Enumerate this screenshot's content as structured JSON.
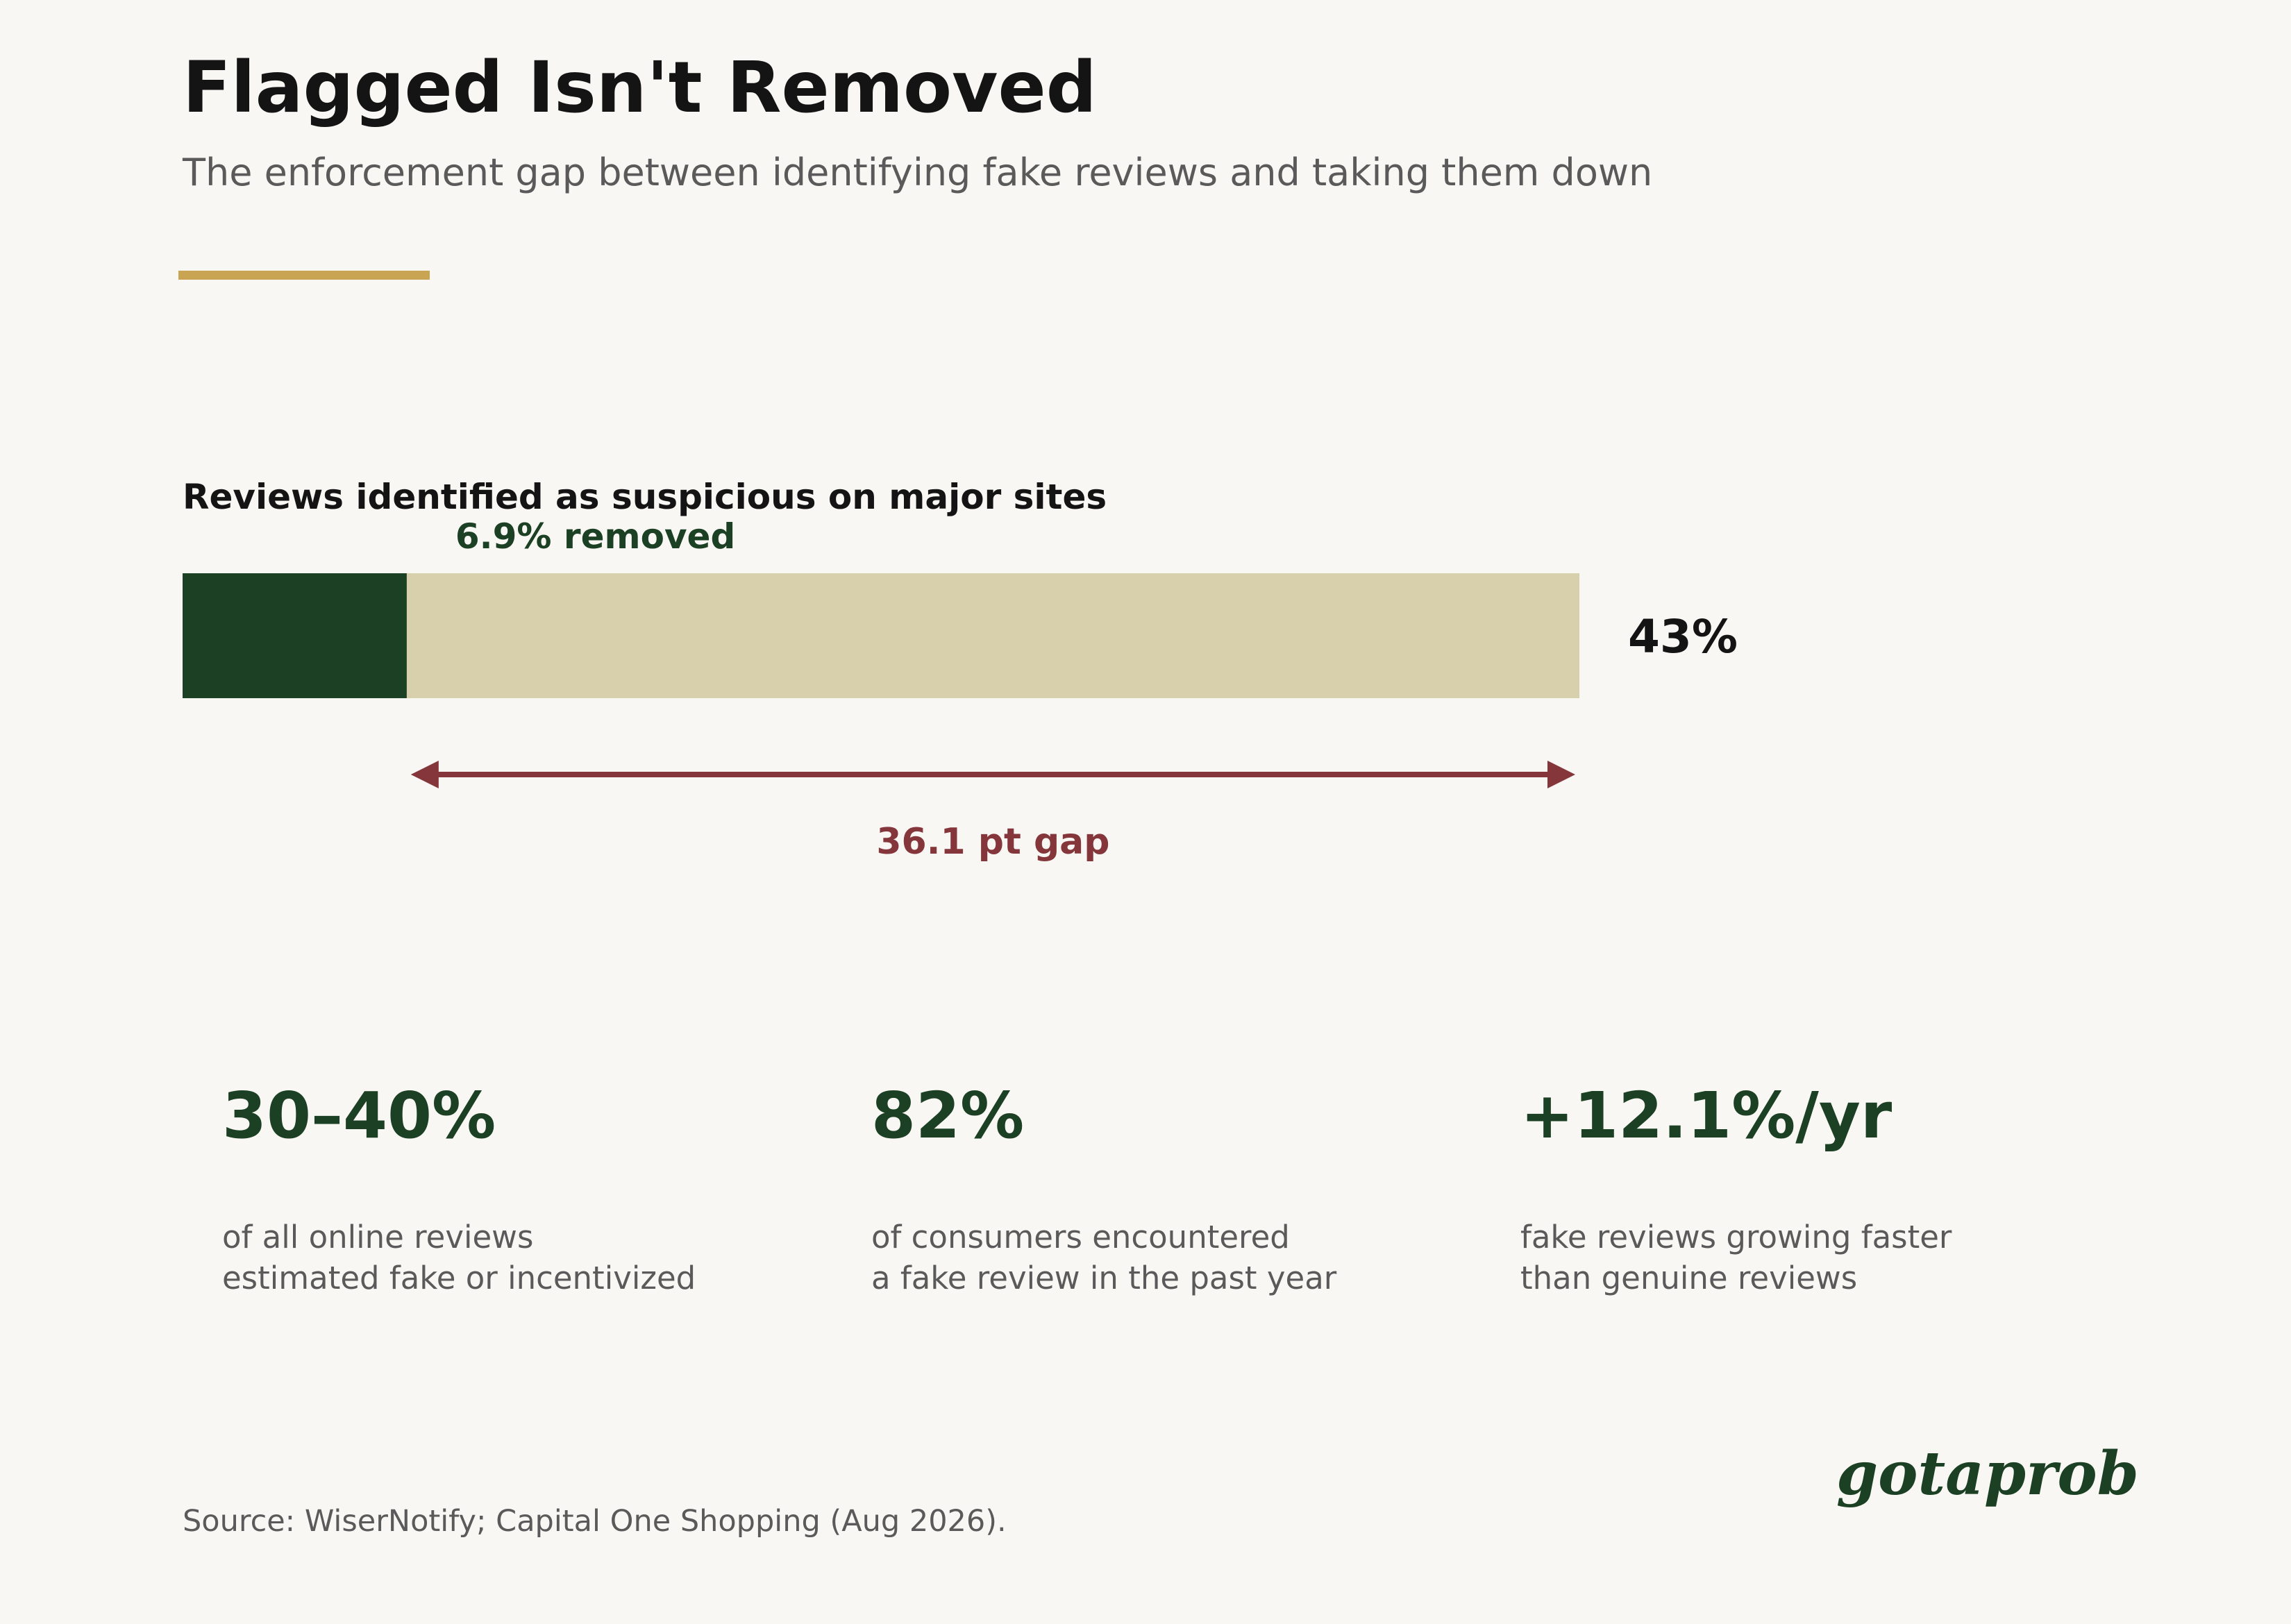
{
  "header": {
    "title": "Flagged Isn't Removed",
    "subtitle": "The enforcement gap between identifying fake reviews and taking them down"
  },
  "colors": {
    "background": "#f9f7f4",
    "accent_gold": "#c9a452",
    "removed_green": "#1c4023",
    "flagged_tan": "#d8cfad",
    "gap_red": "#84363a"
  },
  "chart_data": {
    "type": "bar",
    "title": "Reviews identified as suspicious on major sites",
    "orientation": "horizontal",
    "xlim": [
      0,
      43
    ],
    "series": [
      {
        "name": "removed",
        "value": 6.9,
        "label": "6.9% removed",
        "color": "#1c4023"
      },
      {
        "name": "flagged",
        "value": 43,
        "label": "43%",
        "color": "#d8cfad"
      }
    ],
    "annotation": {
      "from": 6.9,
      "to": 43,
      "label": "36.1 pt gap"
    }
  },
  "stats": [
    {
      "value": "30–40%",
      "line1": "of all online reviews",
      "line2": "estimated fake or incentivized"
    },
    {
      "value": "82%",
      "line1": "of consumers encountered",
      "line2": "a fake review in the past year"
    },
    {
      "value": "+12.1%/yr",
      "line1": "fake reviews growing faster",
      "line2": "than genuine reviews"
    }
  ],
  "footer": {
    "source": "Source: WiserNotify; Capital One Shopping (Aug 2026).",
    "brand": "gotaprob"
  }
}
